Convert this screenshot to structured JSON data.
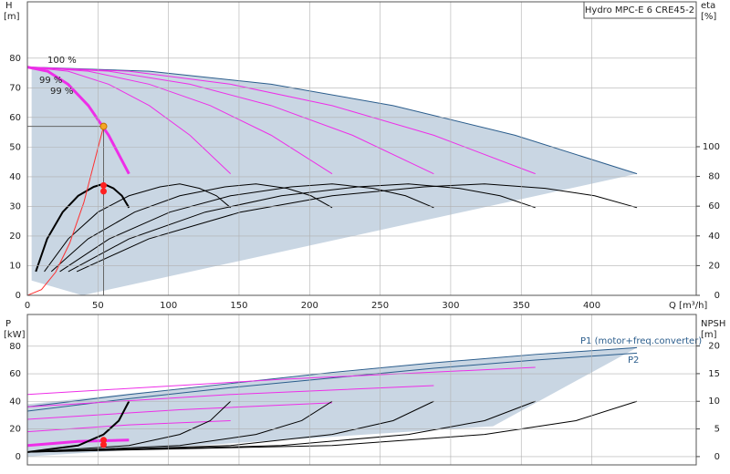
{
  "chart_data": [
    {
      "type": "line",
      "title": "Hydro MPC-E 6 CRE45-2",
      "ylabel": "H",
      "yunit": "[m]",
      "y2label": "eta",
      "y2unit": "[%]",
      "xlabel": "Q [m³/h]",
      "xlim": [
        0,
        474
      ],
      "xticks": [
        0,
        50,
        100,
        150,
        200,
        250,
        300,
        350,
        400
      ],
      "ylim": [
        0,
        99
      ],
      "yticks": [
        0,
        10,
        20,
        30,
        40,
        50,
        60,
        70,
        80
      ],
      "y2lim": [
        0,
        197.5
      ],
      "y2ticks": [
        0,
        20,
        40,
        60,
        80,
        100
      ],
      "grid": true,
      "annotations": [
        "100 %",
        "99 %",
        "99 %"
      ],
      "series": [
        {
          "style": "area",
          "color": "#c9d6e3",
          "x": [
            3,
            86.4,
            172.8,
            259.2,
            345.6,
            432,
            39,
            3
          ],
          "values": [
            77,
            75.6,
            71.2,
            64,
            54,
            41,
            0,
            5
          ]
        },
        {
          "style": "line",
          "color": "#2b5d8c",
          "x": [
            0,
            86.4,
            172.8,
            259.2,
            345.6,
            432
          ],
          "values": [
            77,
            75.6,
            71.2,
            64,
            54,
            41
          ]
        },
        {
          "style": "line",
          "color": "#ee2ee8",
          "width": 3,
          "x": [
            0,
            14.4,
            28.8,
            43.2,
            57.6,
            72
          ],
          "values": [
            77,
            75.6,
            71.2,
            64,
            54,
            41
          ]
        },
        {
          "style": "line",
          "color": "#ee2ee8",
          "x": [
            0,
            28.8,
            57.6,
            86.4,
            115.2,
            144
          ],
          "values": [
            77,
            75.6,
            71.2,
            64,
            54,
            41
          ]
        },
        {
          "style": "line",
          "color": "#ee2ee8",
          "x": [
            0,
            43.2,
            86.4,
            129.6,
            172.8,
            216
          ],
          "values": [
            77,
            75.6,
            71.2,
            64,
            54,
            41
          ]
        },
        {
          "style": "line",
          "color": "#ee2ee8",
          "x": [
            0,
            57.6,
            115.2,
            172.8,
            230.4,
            288
          ],
          "values": [
            77,
            75.6,
            71.2,
            64,
            54,
            41
          ]
        },
        {
          "style": "line",
          "color": "#ee2ee8",
          "x": [
            0,
            72,
            144,
            216,
            288,
            360
          ],
          "values": [
            77,
            75.6,
            71.2,
            64,
            54,
            41
          ]
        },
        {
          "style": "line",
          "color": "#000000",
          "width": 2,
          "axis": "y2",
          "x": [
            6,
            14,
            25,
            36,
            47,
            54,
            61,
            67,
            72
          ],
          "values": [
            16,
            38,
            56,
            67,
            73,
            75,
            72,
            67,
            59
          ]
        },
        {
          "style": "line",
          "color": "#000000",
          "axis": "y2",
          "x": [
            12,
            29,
            50,
            72,
            94,
            108,
            122,
            134,
            144
          ],
          "values": [
            16,
            38,
            56,
            67,
            73,
            75,
            72,
            67,
            59
          ]
        },
        {
          "style": "line",
          "color": "#000000",
          "axis": "y2",
          "x": [
            17,
            43,
            76,
            108,
            140,
            162,
            184,
            201,
            216
          ],
          "values": [
            16,
            38,
            56,
            67,
            73,
            75,
            72,
            67,
            59
          ]
        },
        {
          "style": "line",
          "color": "#000000",
          "axis": "y2",
          "x": [
            23,
            58,
            101,
            144,
            187,
            216,
            245,
            268,
            288
          ],
          "values": [
            16,
            38,
            56,
            67,
            73,
            75,
            72,
            67,
            59
          ]
        },
        {
          "style": "line",
          "color": "#000000",
          "axis": "y2",
          "x": [
            29,
            72,
            126,
            180,
            234,
            270,
            306,
            335,
            360
          ],
          "values": [
            16,
            38,
            56,
            67,
            73,
            75,
            72,
            67,
            59
          ]
        },
        {
          "style": "line",
          "color": "#000000",
          "axis": "y2",
          "x": [
            35,
            86,
            151,
            216,
            281,
            324,
            367,
            402,
            432
          ],
          "values": [
            16,
            38,
            56,
            67,
            73,
            75,
            72,
            67,
            59
          ]
        },
        {
          "style": "line",
          "color": "#ff3030",
          "x": [
            0,
            10,
            20,
            30,
            40,
            54
          ],
          "values": [
            0,
            1.95,
            7.8,
            17.6,
            31.3,
            57
          ]
        },
        {
          "style": "points",
          "color": "#ff2020",
          "axis": "y2",
          "x": [
            54,
            54
          ],
          "values": [
            74,
            70
          ]
        },
        {
          "style": "points",
          "color": "#f5a623",
          "crosshair": true,
          "x": [
            54
          ],
          "values": [
            57
          ]
        }
      ]
    },
    {
      "type": "line",
      "ylabel": "P",
      "yunit": "[kW]",
      "y2label": "NPSH",
      "y2unit": "[m]",
      "xlim": [
        0,
        474
      ],
      "ylim": [
        -6,
        103
      ],
      "yticks": [
        0,
        20,
        40,
        60,
        80
      ],
      "y2lim": [
        -1.5,
        25.7
      ],
      "y2ticks": [
        0,
        5,
        10,
        15,
        20
      ],
      "grid": true,
      "series": [
        {
          "style": "area",
          "color": "#c9d6e3",
          "x": [
            0,
            144,
            288,
            432,
            330,
            0
          ],
          "values": [
            38,
            53,
            68,
            79,
            22,
            0
          ]
        },
        {
          "style": "line",
          "color": "#2b5d8c",
          "name": "P1 (motor+freq.converter)",
          "x": [
            0,
            72,
            144,
            216,
            288,
            360,
            432
          ],
          "values": [
            36,
            45,
            53,
            61,
            68,
            74,
            79
          ]
        },
        {
          "style": "line",
          "color": "#2b5d8c",
          "name": "P2",
          "x": [
            0,
            72,
            144,
            216,
            288,
            360,
            432
          ],
          "values": [
            33,
            42,
            50,
            57,
            64,
            70,
            75
          ]
        },
        {
          "style": "line",
          "color": "#ee2ee8",
          "width": 3,
          "x": [
            0,
            36,
            72
          ],
          "values": [
            8,
            11,
            12
          ]
        },
        {
          "style": "line",
          "color": "#ee2ee8",
          "x": [
            0,
            72,
            144
          ],
          "values": [
            18,
            23,
            26
          ]
        },
        {
          "style": "line",
          "color": "#ee2ee8",
          "x": [
            0,
            108,
            216
          ],
          "values": [
            27,
            34,
            39
          ]
        },
        {
          "style": "line",
          "color": "#ee2ee8",
          "x": [
            0,
            144,
            288
          ],
          "values": [
            36,
            45,
            51.5
          ]
        },
        {
          "style": "line",
          "color": "#ee2ee8",
          "x": [
            0,
            180,
            360
          ],
          "values": [
            45,
            56,
            64.7
          ]
        },
        {
          "style": "line",
          "color": "#000000",
          "width": 2,
          "axis": "y2",
          "x": [
            0,
            36,
            54,
            64.8,
            72
          ],
          "values": [
            0.8,
            2,
            4,
            6.5,
            10
          ]
        },
        {
          "style": "line",
          "color": "#000000",
          "axis": "y2",
          "x": [
            0,
            72,
            108,
            129.6,
            144
          ],
          "values": [
            0.8,
            2,
            4,
            6.5,
            10
          ]
        },
        {
          "style": "line",
          "color": "#000000",
          "axis": "y2",
          "x": [
            0,
            108,
            162,
            194.4,
            216
          ],
          "values": [
            0.8,
            2,
            4,
            6.5,
            10
          ]
        },
        {
          "style": "line",
          "color": "#000000",
          "axis": "y2",
          "x": [
            0,
            144,
            216,
            259.2,
            288
          ],
          "values": [
            0.8,
            2,
            4,
            6.5,
            10
          ]
        },
        {
          "style": "line",
          "color": "#000000",
          "axis": "y2",
          "x": [
            0,
            180,
            270,
            324,
            360
          ],
          "values": [
            0.8,
            2,
            4,
            6.5,
            10
          ]
        },
        {
          "style": "line",
          "color": "#000000",
          "axis": "y2",
          "x": [
            0,
            216,
            324,
            388.8,
            432
          ],
          "values": [
            0.8,
            2,
            4,
            6.5,
            10
          ]
        },
        {
          "style": "points",
          "color": "#ff2020",
          "x": [
            54,
            54
          ],
          "values": [
            12,
            8.6
          ]
        }
      ]
    }
  ]
}
